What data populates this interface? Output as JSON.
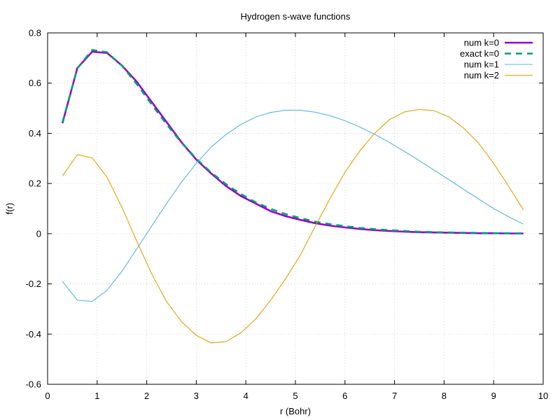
{
  "chart_data": {
    "type": "line",
    "title": "Hydrogen s-wave functions",
    "xlabel": "r (Bohr)",
    "ylabel": "f(r)",
    "xlim": [
      0,
      10
    ],
    "ylim": [
      -0.6,
      0.8
    ],
    "xticks": [
      0,
      1,
      2,
      3,
      4,
      5,
      6,
      7,
      8,
      9,
      10
    ],
    "xtick_labels": [
      "0",
      "1",
      "2",
      "3",
      "4",
      "5",
      "6",
      "7",
      "8",
      "9",
      "10"
    ],
    "yticks": [
      -0.6,
      -0.4,
      -0.2,
      0,
      0.2,
      0.4,
      0.6,
      0.8
    ],
    "ytick_labels": [
      "-0.6",
      "-0.4",
      "-0.2",
      "0",
      "0.2",
      "0.4",
      "0.6",
      "0.8"
    ],
    "grid": true,
    "legend_position": "top-right",
    "series": [
      {
        "name": "num k=0",
        "color": "#9400d3",
        "style": "solid-thick",
        "x": [
          0.3,
          0.6,
          0.9,
          1.2,
          1.5,
          1.8,
          2.1,
          2.4,
          2.7,
          3.0,
          3.3,
          3.6,
          3.9,
          4.2,
          4.5,
          4.8,
          5.1,
          5.4,
          5.7,
          6.0,
          6.3,
          6.6,
          6.9,
          7.2,
          7.5,
          7.8,
          8.1,
          8.4,
          8.7,
          9.0,
          9.3,
          9.6
        ],
        "y": [
          0.44,
          0.66,
          0.725,
          0.72,
          0.67,
          0.605,
          0.525,
          0.445,
          0.365,
          0.295,
          0.24,
          0.19,
          0.15,
          0.12,
          0.09,
          0.07,
          0.055,
          0.042,
          0.032,
          0.025,
          0.019,
          0.014,
          0.011,
          0.008,
          0.006,
          0.005,
          0.004,
          0.003,
          0.002,
          0.002,
          0.001,
          0.001
        ]
      },
      {
        "name": "exact k=0",
        "color": "#009e73",
        "style": "dashed",
        "x": [
          0.3,
          0.6,
          0.9,
          1.2,
          1.5,
          1.8,
          2.1,
          2.4,
          2.7,
          3.0,
          3.3,
          3.6,
          3.9,
          4.2,
          4.5,
          4.8,
          5.1,
          5.4,
          5.7,
          6.0,
          6.3,
          6.6,
          6.9,
          7.2,
          7.5,
          7.8,
          8.1,
          8.4,
          8.7,
          9.0,
          9.3,
          9.6
        ],
        "y": [
          0.444,
          0.659,
          0.732,
          0.723,
          0.669,
          0.596,
          0.515,
          0.436,
          0.363,
          0.299,
          0.244,
          0.197,
          0.158,
          0.125,
          0.099,
          0.078,
          0.062,
          0.048,
          0.038,
          0.03,
          0.023,
          0.018,
          0.014,
          0.011,
          0.008,
          0.006,
          0.005,
          0.004,
          0.003,
          0.002,
          0.002,
          0.001
        ]
      },
      {
        "name": "num k=1",
        "color": "#56b4e9",
        "style": "solid",
        "x": [
          0.3,
          0.6,
          0.9,
          1.2,
          1.5,
          1.8,
          2.1,
          2.4,
          2.7,
          3.0,
          3.3,
          3.6,
          3.9,
          4.2,
          4.5,
          4.8,
          5.1,
          5.4,
          5.7,
          6.0,
          6.3,
          6.6,
          6.9,
          7.2,
          7.5,
          7.8,
          8.1,
          8.4,
          8.7,
          9.0,
          9.3,
          9.6
        ],
        "y": [
          -0.19,
          -0.265,
          -0.27,
          -0.225,
          -0.15,
          -0.06,
          0.03,
          0.12,
          0.205,
          0.28,
          0.345,
          0.395,
          0.435,
          0.465,
          0.483,
          0.492,
          0.492,
          0.484,
          0.47,
          0.45,
          0.425,
          0.396,
          0.363,
          0.328,
          0.291,
          0.253,
          0.215,
          0.176,
          0.138,
          0.1,
          0.068,
          0.038
        ]
      },
      {
        "name": "num k=2",
        "color": "#e69f00",
        "style": "solid",
        "x": [
          0.3,
          0.6,
          0.9,
          1.2,
          1.5,
          1.8,
          2.1,
          2.4,
          2.7,
          3.0,
          3.3,
          3.6,
          3.9,
          4.2,
          4.5,
          4.8,
          5.1,
          5.4,
          5.7,
          6.0,
          6.3,
          6.6,
          6.9,
          7.2,
          7.5,
          7.8,
          8.1,
          8.4,
          8.7,
          9.0,
          9.3,
          9.6
        ],
        "y": [
          0.23,
          0.315,
          0.302,
          0.225,
          0.105,
          -0.03,
          -0.16,
          -0.27,
          -0.35,
          -0.405,
          -0.435,
          -0.43,
          -0.395,
          -0.34,
          -0.265,
          -0.18,
          -0.085,
          0.03,
          0.14,
          0.245,
          0.33,
          0.4,
          0.455,
          0.485,
          0.495,
          0.49,
          0.465,
          0.42,
          0.36,
          0.28,
          0.19,
          0.095
        ]
      }
    ]
  }
}
